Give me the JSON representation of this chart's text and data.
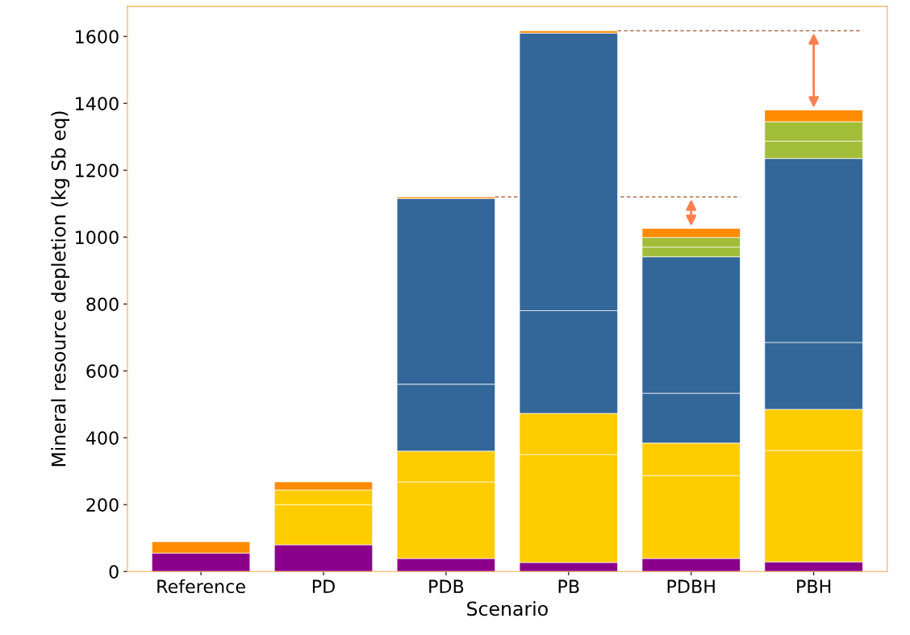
{
  "chart_data": {
    "type": "bar",
    "stacked": true,
    "xlabel": "Scenario",
    "ylabel": "Mineral resource depletion (kg Sb eq)",
    "categories": [
      "Reference",
      "PD",
      "PDB",
      "PB",
      "PDBH",
      "PBH"
    ],
    "series": [
      {
        "color": "#8b008b",
        "values": [
          55,
          80,
          39,
          27,
          39,
          29
        ]
      },
      {
        "color": "#ffcc00",
        "values": [
          null,
          120,
          229,
          323,
          248,
          333
        ]
      },
      {
        "color": "#ffcc00",
        "values": [
          null,
          44,
          92,
          123,
          97,
          123
        ]
      },
      {
        "color": "#336699",
        "values": [
          null,
          null,
          200,
          307,
          149,
          200
        ]
      },
      {
        "color": "#336699",
        "values": [
          null,
          null,
          555,
          830,
          408,
          550
        ]
      },
      {
        "color": "#a2bd38",
        "values": [
          null,
          null,
          null,
          null,
          29,
          52
        ]
      },
      {
        "color": "#a2bd38",
        "values": [
          null,
          null,
          null,
          null,
          29,
          58
        ]
      },
      {
        "color": "#ff8c00",
        "values": [
          34,
          24,
          5,
          7,
          27,
          35
        ]
      }
    ],
    "ylim": [
      0,
      1690
    ],
    "yticks": [
      0,
      200,
      400,
      600,
      800,
      1000,
      1200,
      1400,
      1600
    ],
    "ref_lines": [
      {
        "axis": "y",
        "value": 1120,
        "color": "#a0522d",
        "line_style": "dashed"
      },
      {
        "axis": "y",
        "value": 1617,
        "color": "#a0522d",
        "line_style": "dashed"
      }
    ],
    "grid": false,
    "legend": false
  }
}
